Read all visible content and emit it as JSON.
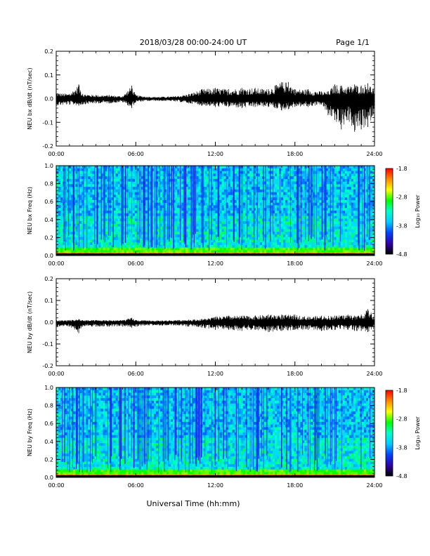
{
  "header": {
    "title": "2018/03/28  00:00-24:00 UT",
    "page_label": "Page 1/1"
  },
  "colorbar": {
    "label": "Log₁₀ Power",
    "ticks": [
      "-1.8",
      "-2.8",
      "-3.8",
      "-4.8"
    ],
    "stops": [
      "#ff0000",
      "#ff8800",
      "#ffff00",
      "#00ff00",
      "#00ffcc",
      "#00ccff",
      "#0044ff",
      "#3300aa",
      "#000000"
    ]
  },
  "xlabel": "Universal Time (hh:mm)",
  "chart_data": [
    {
      "type": "line",
      "ylabel": "NEU bx dB/dt (nT/sec)",
      "xlim": [
        0,
        24
      ],
      "ylim": [
        -0.2,
        0.2
      ],
      "x_ticks": [
        "00:00",
        "06:00",
        "12:00",
        "18:00",
        "24:00"
      ],
      "y_ticks": [
        "0.2",
        "0.1",
        "0.0",
        "-0.1",
        "-0.2"
      ],
      "envelope": {
        "hours": [
          0,
          1,
          1.7,
          2,
          3,
          4,
          5,
          5.7,
          6,
          7,
          8,
          9,
          10,
          11,
          12,
          13,
          14,
          15,
          16,
          16.5,
          17,
          17.5,
          18,
          19,
          20,
          20.5,
          21,
          21.5,
          22,
          22.5,
          23,
          23.5,
          24
        ],
        "upper": [
          0.025,
          0.02,
          0.06,
          0.02,
          0.015,
          0.015,
          0.01,
          0.055,
          0.015,
          0.008,
          0.008,
          0.01,
          0.02,
          0.04,
          0.045,
          0.04,
          0.045,
          0.045,
          0.04,
          0.055,
          0.07,
          0.07,
          0.04,
          0.04,
          0.03,
          0.03,
          0.06,
          0.055,
          0.05,
          0.06,
          0.055,
          0.065,
          0.04
        ],
        "lower": [
          -0.03,
          -0.025,
          -0.03,
          -0.025,
          -0.02,
          -0.02,
          -0.015,
          -0.04,
          -0.015,
          -0.01,
          -0.01,
          -0.012,
          -0.02,
          -0.03,
          -0.035,
          -0.035,
          -0.04,
          -0.035,
          -0.035,
          -0.04,
          -0.05,
          -0.045,
          -0.035,
          -0.035,
          -0.025,
          -0.07,
          -0.09,
          -0.13,
          -0.09,
          -0.14,
          -0.13,
          -0.12,
          -0.06
        ]
      }
    },
    {
      "type": "heatmap",
      "ylabel": "NEU bx Freq (Hz)",
      "xlim": [
        0,
        24
      ],
      "ylim": [
        0,
        1
      ],
      "x_ticks": [
        "00:00",
        "06:00",
        "12:00",
        "18:00",
        "24:00"
      ],
      "y_ticks": [
        "1.0",
        "0.8",
        "0.6",
        "0.4",
        "0.2",
        "0.0"
      ],
      "zlim": [
        -4.8,
        -1.8
      ]
    },
    {
      "type": "line",
      "ylabel": "NEU by dB/dt (nT/sec)",
      "xlim": [
        0,
        24
      ],
      "ylim": [
        -0.2,
        0.2
      ],
      "x_ticks": [
        "00:00",
        "06:00",
        "12:00",
        "18:00",
        "24:00"
      ],
      "y_ticks": [
        "0.2",
        "0.1",
        "0.0",
        "-0.1",
        "-0.2"
      ],
      "envelope": {
        "hours": [
          0,
          1,
          1.7,
          2,
          3,
          4,
          5,
          5.7,
          6,
          7,
          8,
          9,
          10,
          11,
          12,
          13,
          14,
          15,
          16,
          17,
          18,
          19,
          20,
          21,
          22,
          22.5,
          23,
          23.5,
          24
        ],
        "upper": [
          0.01,
          0.01,
          0.015,
          0.01,
          0.01,
          0.01,
          0.01,
          0.02,
          0.01,
          0.008,
          0.008,
          0.01,
          0.012,
          0.015,
          0.025,
          0.03,
          0.03,
          0.03,
          0.035,
          0.035,
          0.035,
          0.025,
          0.03,
          0.03,
          0.035,
          0.03,
          0.035,
          0.06,
          0.03
        ],
        "lower": [
          -0.02,
          -0.02,
          -0.05,
          -0.02,
          -0.02,
          -0.02,
          -0.02,
          -0.025,
          -0.02,
          -0.015,
          -0.015,
          -0.015,
          -0.02,
          -0.025,
          -0.035,
          -0.035,
          -0.04,
          -0.035,
          -0.045,
          -0.04,
          -0.035,
          -0.035,
          -0.04,
          -0.035,
          -0.035,
          -0.04,
          -0.04,
          -0.045,
          -0.03
        ]
      }
    },
    {
      "type": "heatmap",
      "ylabel": "NEU by Freq (Hz)",
      "xlim": [
        0,
        24
      ],
      "ylim": [
        0,
        1
      ],
      "x_ticks": [
        "00:00",
        "06:00",
        "12:00",
        "18:00",
        "24:00"
      ],
      "y_ticks": [
        "1.0",
        "0.8",
        "0.6",
        "0.4",
        "0.2",
        "0.0"
      ],
      "zlim": [
        -4.8,
        -1.8
      ]
    }
  ]
}
